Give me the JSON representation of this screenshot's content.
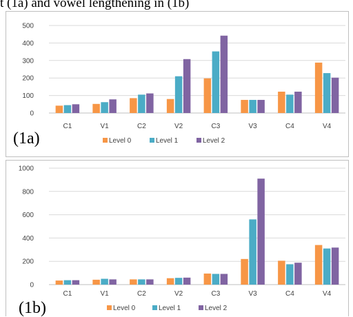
{
  "caption": "t (1a) and vowel lengthening in (1b)",
  "colors": {
    "level0": "#F79646",
    "level1": "#4BACC6",
    "level2": "#8064A2",
    "grid": "#d9d9d9",
    "axis": "#bfbfbf"
  },
  "chart_data": [
    {
      "type": "bar",
      "panel_label": "(1a)",
      "categories": [
        "C1",
        "V1",
        "C2",
        "V2",
        "C3",
        "V3",
        "C4",
        "V4"
      ],
      "series": [
        {
          "name": "Level 0",
          "values": [
            42,
            52,
            85,
            80,
            198,
            75,
            122,
            288
          ]
        },
        {
          "name": "Level 1",
          "values": [
            45,
            62,
            105,
            210,
            352,
            75,
            105,
            228
          ]
        },
        {
          "name": "Level 2",
          "values": [
            50,
            78,
            112,
            308,
            442,
            75,
            122,
            202
          ]
        }
      ],
      "ylim": [
        0,
        500
      ],
      "yticks": [
        0,
        100,
        200,
        300,
        400,
        500
      ],
      "grid": true,
      "legend": "bottom"
    },
    {
      "type": "bar",
      "panel_label": "(1b)",
      "categories": [
        "C1",
        "V1",
        "C2",
        "V2",
        "C3",
        "V3",
        "C4",
        "V4"
      ],
      "series": [
        {
          "name": "Level 0",
          "values": [
            35,
            42,
            45,
            55,
            95,
            220,
            205,
            340
          ]
        },
        {
          "name": "Level 1",
          "values": [
            38,
            50,
            45,
            58,
            92,
            560,
            175,
            310
          ]
        },
        {
          "name": "Level 2",
          "values": [
            38,
            45,
            45,
            60,
            92,
            910,
            188,
            318
          ]
        }
      ],
      "ylim": [
        0,
        1000
      ],
      "yticks": [
        0,
        200,
        400,
        600,
        800,
        1000
      ],
      "grid": true,
      "legend": "bottom"
    }
  ]
}
